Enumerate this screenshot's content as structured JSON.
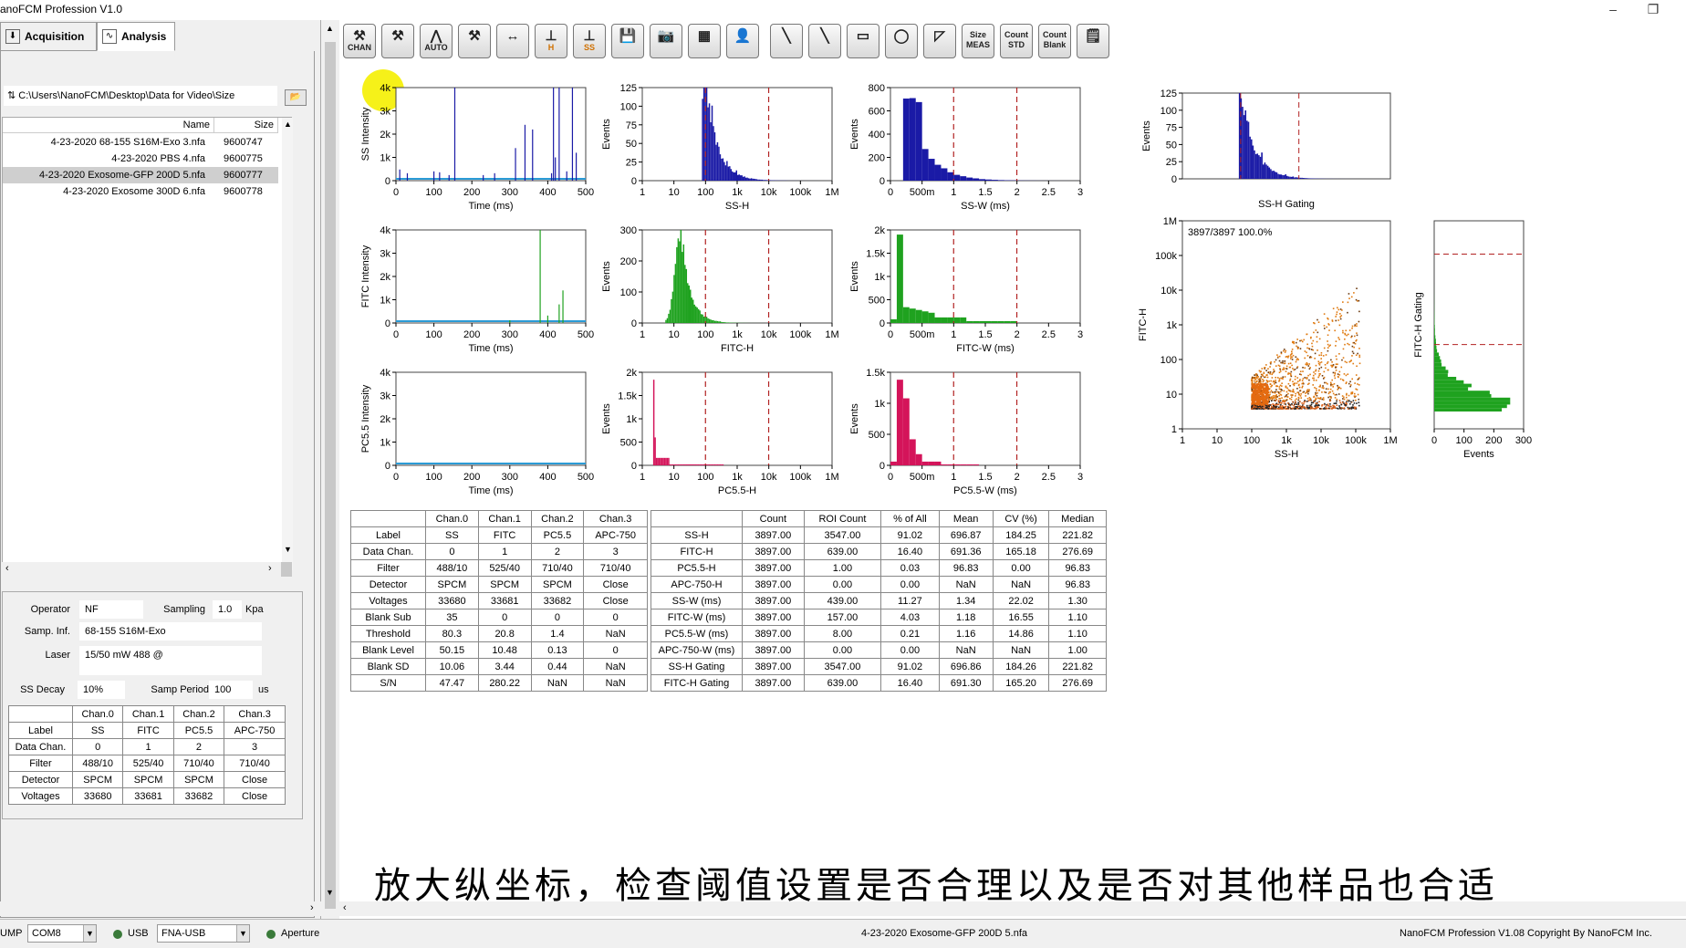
{
  "window": {
    "title": "anoFCM Profession V1.0",
    "minimize": "–",
    "restore": "❐"
  },
  "tabs": [
    {
      "label": "Acquisition"
    },
    {
      "label": "Analysis"
    }
  ],
  "file": {
    "path": "C:\\Users\\NanoFCM\\Desktop\\Data for Video\\Size",
    "col_name": "Name",
    "col_size": "Size",
    "rows": [
      {
        "name": "4-23-2020 68-155 S16M-Exo 3.nfa",
        "size": "9600747"
      },
      {
        "name": "4-23-2020 PBS 4.nfa",
        "size": "9600775"
      },
      {
        "name": "4-23-2020 Exosome-GFP 200D 5.nfa",
        "size": "9600777"
      },
      {
        "name": "4-23-2020 Exosome 300D 6.nfa",
        "size": "9600778"
      }
    ]
  },
  "operator": {
    "operator_label": "Operator",
    "operator_value": "NF",
    "sampling_label": "Sampling",
    "sampling_value": "1.0",
    "sampling_unit": "Kpa",
    "samp_inf_label": "Samp. Inf.",
    "samp_inf_value": "68-155 S16M-Exo",
    "laser_label": "Laser",
    "laser_value": "15/50 mW 488 @",
    "ss_decay_label": "SS Decay",
    "ss_decay_value": "10%",
    "samp_period_label": "Samp Period",
    "samp_period_value": "100",
    "samp_period_unit": "us"
  },
  "left_table": {
    "headers": [
      "",
      "Chan.0",
      "Chan.1",
      "Chan.2",
      "Chan.3"
    ],
    "rows": [
      [
        "Label",
        "SS",
        "FITC",
        "PC5.5",
        "APC-750"
      ],
      [
        "Data Chan.",
        "0",
        "1",
        "2",
        "3"
      ],
      [
        "Filter",
        "488/10",
        "525/40",
        "710/40",
        "710/40"
      ],
      [
        "Detector",
        "SPCM",
        "SPCM",
        "SPCM",
        "Close"
      ],
      [
        "Voltages",
        "33680",
        "33681",
        "33682",
        "Close"
      ]
    ]
  },
  "toolbar": [
    {
      "name": "chan-tool",
      "label": "CHAN"
    },
    {
      "name": "tool2",
      "label": ""
    },
    {
      "name": "auto",
      "label": "AUTO"
    },
    {
      "name": "tool4",
      "label": ""
    },
    {
      "name": "width",
      "label": ""
    },
    {
      "name": "h-tool",
      "label": "H"
    },
    {
      "name": "trig-chan-ss",
      "label": "SS"
    },
    {
      "name": "save",
      "label": ""
    },
    {
      "name": "camera",
      "label": ""
    },
    {
      "name": "grid",
      "label": ""
    },
    {
      "name": "person",
      "label": ""
    },
    {
      "name": "line1",
      "label": ""
    },
    {
      "name": "line2",
      "label": ""
    },
    {
      "name": "rect",
      "label": ""
    },
    {
      "name": "circle",
      "label": ""
    },
    {
      "name": "polygon",
      "label": ""
    },
    {
      "name": "size-meas",
      "label": "Size MEAS"
    },
    {
      "name": "count-std",
      "label": "Count STD"
    },
    {
      "name": "count-blank",
      "label": "Count Blank"
    },
    {
      "name": "report",
      "label": ""
    }
  ],
  "plots": {
    "ss_time": {
      "ylabel": "SS Intensity",
      "xlabel": "Time (ms)",
      "yticks": [
        "0",
        "1k",
        "2k",
        "3k",
        "4k"
      ],
      "xticks": [
        "0",
        "100",
        "200",
        "300",
        "400",
        "500"
      ]
    },
    "fitc_time": {
      "ylabel": "FITC Intensity",
      "xlabel": "Time (ms)",
      "yticks": [
        "0",
        "1k",
        "2k",
        "3k",
        "4k"
      ],
      "xticks": [
        "0",
        "100",
        "200",
        "300",
        "400",
        "500"
      ]
    },
    "pc_time": {
      "ylabel": "PC5.5 Intensity",
      "xlabel": "Time (ms)",
      "yticks": [
        "0",
        "1k",
        "2k",
        "3k",
        "4k"
      ],
      "xticks": [
        "0",
        "100",
        "200",
        "300",
        "400",
        "500"
      ]
    },
    "ssh_hist": {
      "ylabel": "Events",
      "xlabel": "SS-H",
      "yticks": [
        "0",
        "25",
        "50",
        "75",
        "100",
        "125"
      ],
      "xticks": [
        "1",
        "10",
        "100",
        "1k",
        "10k",
        "100k",
        "1M"
      ]
    },
    "fitch_hist": {
      "ylabel": "Events",
      "xlabel": "FITC-H",
      "yticks": [
        "0",
        "100",
        "200",
        "300"
      ],
      "xticks": [
        "1",
        "10",
        "100",
        "1k",
        "10k",
        "100k",
        "1M"
      ]
    },
    "pch_hist": {
      "ylabel": "Events",
      "xlabel": "PC5.5-H",
      "yticks": [
        "0",
        "500",
        "1k",
        "1.5k",
        "2k"
      ],
      "xticks": [
        "1",
        "10",
        "100",
        "1k",
        "10k",
        "100k",
        "1M"
      ]
    },
    "ssw_hist": {
      "ylabel": "Events",
      "xlabel": "SS-W (ms)",
      "yticks": [
        "0",
        "200",
        "400",
        "600",
        "800"
      ],
      "xticks": [
        "0",
        "500m",
        "1",
        "1.5",
        "2",
        "2.5",
        "3"
      ]
    },
    "fitcw_hist": {
      "ylabel": "Events",
      "xlabel": "FITC-W (ms)",
      "yticks": [
        "0",
        "500",
        "1k",
        "1.5k",
        "2k"
      ],
      "xticks": [
        "0",
        "500m",
        "1",
        "1.5",
        "2",
        "2.5",
        "3"
      ]
    },
    "pcw_hist": {
      "ylabel": "Events",
      "xlabel": "PC5.5-W (ms)",
      "yticks": [
        "0",
        "500",
        "1k",
        "1.5k"
      ],
      "xticks": [
        "0",
        "500m",
        "1",
        "1.5",
        "2",
        "2.5",
        "3"
      ]
    },
    "ssh_gating": {
      "ylabel": "Events",
      "xlabel": "SS-H Gating",
      "yticks": [
        "0",
        "25",
        "50",
        "75",
        "100",
        "125"
      ]
    },
    "scatter": {
      "ylabel": "FITC-H",
      "xlabel": "SS-H",
      "annotation": "3897/3897  100.0%",
      "yticks": [
        "1",
        "10",
        "100",
        "1k",
        "10k",
        "100k",
        "1M"
      ],
      "xticks": [
        "1",
        "10",
        "100",
        "1k",
        "10k",
        "100k",
        "1M"
      ]
    },
    "fitch_gating": {
      "ylabel": "FITC-H Gating",
      "xlabel": "Events",
      "xticks": [
        "0",
        "100",
        "200",
        "300"
      ]
    }
  },
  "stats_channel": {
    "headers": [
      "",
      "Chan.0",
      "Chan.1",
      "Chan.2",
      "Chan.3"
    ],
    "rows": [
      [
        "Label",
        "SS",
        "FITC",
        "PC5.5",
        "APC-750"
      ],
      [
        "Data Chan.",
        "0",
        "1",
        "2",
        "3"
      ],
      [
        "Filter",
        "488/10",
        "525/40",
        "710/40",
        "710/40"
      ],
      [
        "Detector",
        "SPCM",
        "SPCM",
        "SPCM",
        "Close"
      ],
      [
        "Voltages",
        "33680",
        "33681",
        "33682",
        "Close"
      ],
      [
        "Blank Sub",
        "35",
        "0",
        "0",
        "0"
      ],
      [
        "Threshold",
        "80.3",
        "20.8",
        "1.4",
        "NaN"
      ],
      [
        "Blank Level",
        "50.15",
        "10.48",
        "0.13",
        "0"
      ],
      [
        "Blank SD",
        "10.06",
        "3.44",
        "0.44",
        "NaN"
      ],
      [
        "S/N",
        "47.47",
        "280.22",
        "NaN",
        "NaN"
      ]
    ]
  },
  "stats_roi": {
    "headers": [
      "",
      "Count",
      "ROI Count",
      "% of All",
      "Mean",
      "CV (%)",
      "Median"
    ],
    "rows": [
      [
        "SS-H",
        "3897.00",
        "3547.00",
        "91.02",
        "696.87",
        "184.25",
        "221.82"
      ],
      [
        "FITC-H",
        "3897.00",
        "639.00",
        "16.40",
        "691.36",
        "165.18",
        "276.69"
      ],
      [
        "PC5.5-H",
        "3897.00",
        "1.00",
        "0.03",
        "96.83",
        "0.00",
        "96.83"
      ],
      [
        "APC-750-H",
        "3897.00",
        "0.00",
        "0.00",
        "NaN",
        "NaN",
        "96.83"
      ],
      [
        "SS-W (ms)",
        "3897.00",
        "439.00",
        "11.27",
        "1.34",
        "22.02",
        "1.30"
      ],
      [
        "FITC-W (ms)",
        "3897.00",
        "157.00",
        "4.03",
        "1.18",
        "16.55",
        "1.10"
      ],
      [
        "PC5.5-W (ms)",
        "3897.00",
        "8.00",
        "0.21",
        "1.16",
        "14.86",
        "1.10"
      ],
      [
        "APC-750-W (ms)",
        "3897.00",
        "0.00",
        "0.00",
        "NaN",
        "NaN",
        "1.00"
      ],
      [
        "SS-H Gating",
        "3897.00",
        "3547.00",
        "91.02",
        "696.86",
        "184.26",
        "221.82"
      ],
      [
        "FITC-H Gating",
        "3897.00",
        "639.00",
        "16.40",
        "691.30",
        "165.20",
        "276.69"
      ]
    ]
  },
  "subtitle": "放大纵坐标，检查阈值设置是否合理以及是否对其他样品也合适",
  "status": {
    "jump": "UMP",
    "com": "COM8",
    "usb": "USB",
    "fna": "FNA-USB",
    "aperture": "Aperture",
    "file": "4-23-2020 Exosome-GFP 200D 5.nfa",
    "copyright": "NanoFCM Profession V1.08 Copyright By  NanoFCM Inc."
  },
  "colors": {
    "blue": "#1a1aa6",
    "green": "#1fa21f",
    "red": "#d4145a",
    "orange": "#e07a10",
    "gate": "#b22222"
  }
}
